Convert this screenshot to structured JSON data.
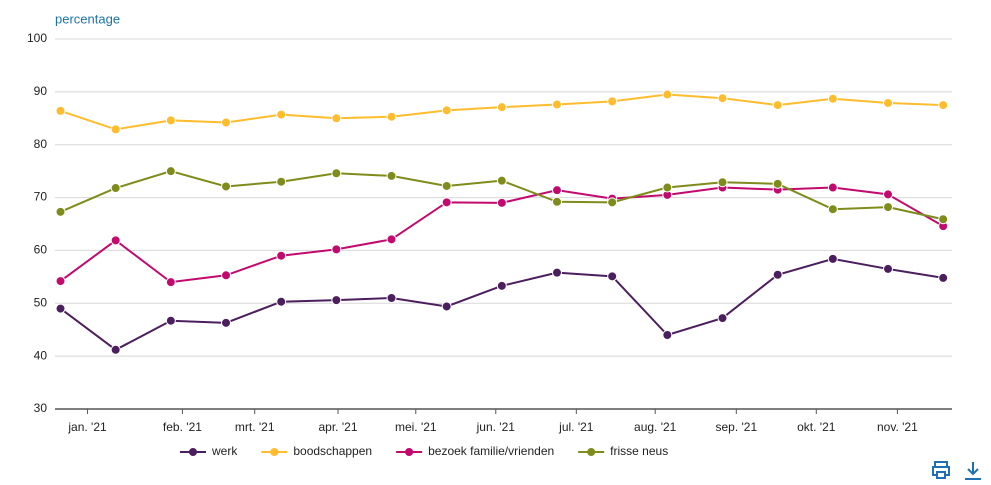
{
  "chart_data": {
    "type": "line",
    "y_label": "percentage",
    "x": [
      0,
      1,
      2,
      3,
      4,
      5,
      6,
      7,
      8,
      9,
      10,
      11,
      12,
      13,
      14,
      15,
      16
    ],
    "xlim": [
      -0.1,
      16.16
    ],
    "xticks": [
      {
        "value": 0.49,
        "label": "jan. '21"
      },
      {
        "value": 2.21,
        "label": "feb. '21"
      },
      {
        "value": 3.52,
        "label": "mrt. '21"
      },
      {
        "value": 5.03,
        "label": "apr. '21"
      },
      {
        "value": 6.44,
        "label": "mei. '21"
      },
      {
        "value": 7.89,
        "label": "jun. '21"
      },
      {
        "value": 9.35,
        "label": "jul. '21"
      },
      {
        "value": 10.78,
        "label": "aug. '21"
      },
      {
        "value": 12.25,
        "label": "sep. '21"
      },
      {
        "value": 13.7,
        "label": "okt. '21"
      },
      {
        "value": 15.17,
        "label": "nov. '21"
      }
    ],
    "ylim": [
      30,
      100
    ],
    "yticks": [
      30,
      40,
      50,
      60,
      70,
      80,
      90,
      100
    ],
    "grid": true,
    "series": [
      {
        "name": "werk",
        "color": "#4b1e5e",
        "values": [
          49.0,
          41.2,
          46.7,
          46.3,
          50.3,
          50.6,
          51.0,
          49.4,
          53.3,
          55.8,
          55.1,
          44.0,
          47.2,
          55.4,
          58.4,
          56.5,
          54.8
        ]
      },
      {
        "name": "boodschappen",
        "color": "#ffbc2c",
        "values": [
          86.4,
          82.9,
          84.6,
          84.2,
          85.7,
          85.0,
          85.3,
          86.5,
          87.1,
          87.6,
          88.2,
          89.5,
          88.8,
          87.5,
          88.7,
          87.9,
          87.5
        ]
      },
      {
        "name": "bezoek familie/vrienden",
        "color": "#c20a6e",
        "values": [
          54.2,
          61.9,
          54.0,
          55.3,
          59.0,
          60.2,
          62.1,
          69.1,
          69.0,
          71.4,
          69.8,
          70.5,
          71.9,
          71.5,
          71.9,
          70.6,
          64.6
        ]
      },
      {
        "name": "frisse neus",
        "color": "#7f8b1a",
        "values": [
          67.3,
          71.8,
          75.0,
          72.1,
          73.0,
          74.6,
          74.1,
          72.2,
          73.2,
          69.2,
          69.1,
          71.9,
          72.9,
          72.6,
          67.8,
          68.2,
          65.9
        ]
      }
    ]
  }
}
